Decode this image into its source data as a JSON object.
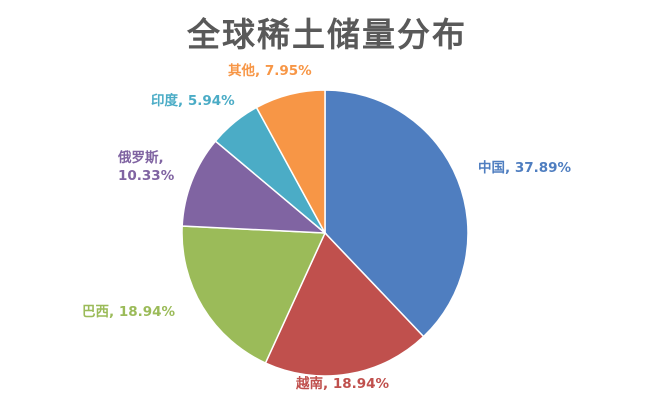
{
  "chart_data": {
    "type": "pie",
    "title": "全球稀土储量分布",
    "slices": [
      {
        "name": "中国",
        "label_top": "中国, ",
        "label_bottom": "",
        "value": 37.89,
        "value_text": "37.89%",
        "color": "#4f7ec0"
      },
      {
        "name": "越南",
        "label_top": "越南, ",
        "label_bottom": "",
        "value": 18.94,
        "value_text": "18.94%",
        "color": "#c0504d"
      },
      {
        "name": "巴西",
        "label_top": "巴西, ",
        "label_bottom": "",
        "value": 18.94,
        "value_text": "18.94%",
        "color": "#9bbb59"
      },
      {
        "name": "俄罗斯",
        "label_top": "俄罗斯,",
        "label_bottom": "10.33%",
        "value": 10.33,
        "value_text": "",
        "color": "#8064a2"
      },
      {
        "name": "印度",
        "label_top": "印度, ",
        "label_bottom": "",
        "value": 5.94,
        "value_text": "5.94%",
        "color": "#4bacc6"
      },
      {
        "name": "其他",
        "label_top": "其他, ",
        "label_bottom": "",
        "value": 7.95,
        "value_text": "7.95%",
        "color": "#f79646"
      }
    ]
  }
}
